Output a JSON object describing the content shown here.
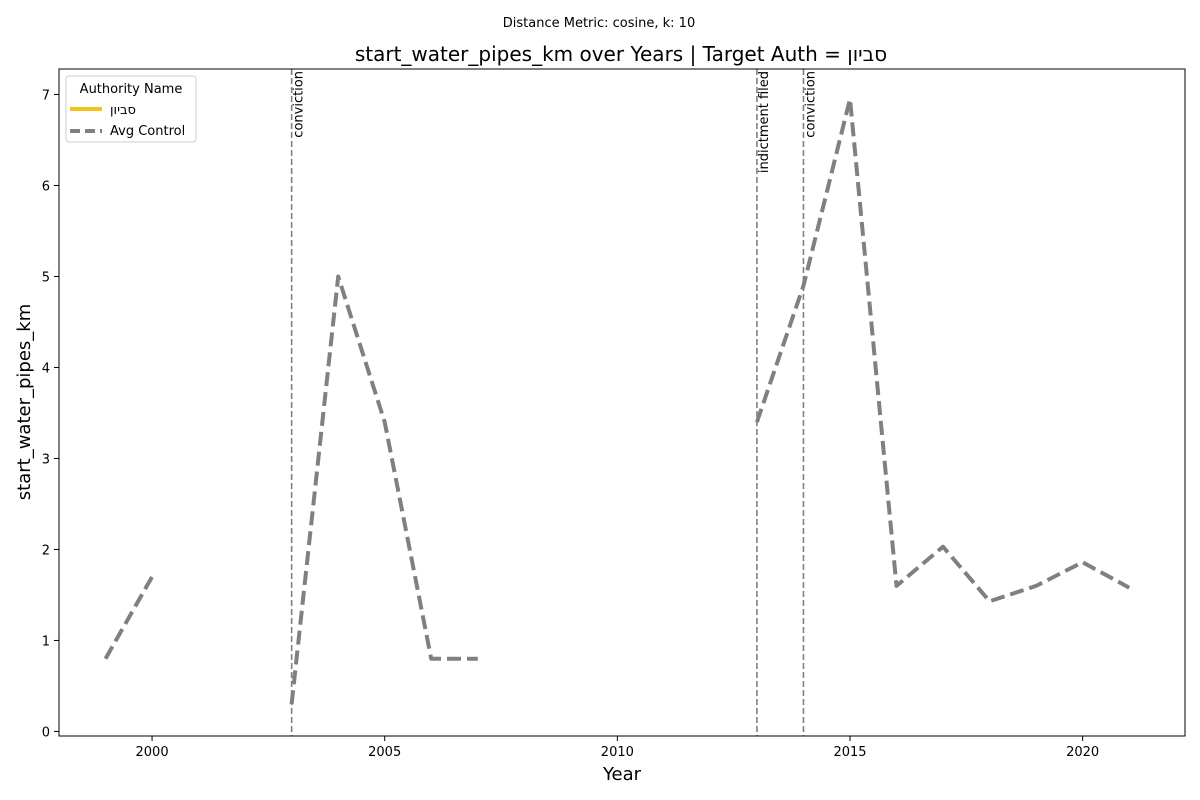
{
  "chart_data": {
    "type": "line",
    "suptitle": "Distance Metric: cosine, k: 10",
    "title": "start_water_pipes_km over Years | Target Auth = סביון",
    "xlabel": "Year",
    "ylabel": "start_water_pipes_km",
    "xlim": [
      1998,
      2022.2
    ],
    "ylim": [
      -0.05,
      7.28
    ],
    "xticks": [
      2000,
      2005,
      2010,
      2015,
      2020
    ],
    "yticks": [
      0,
      1,
      2,
      3,
      4,
      5,
      6,
      7
    ],
    "grid": false,
    "legend": {
      "title": "Authority Name",
      "placement": "top-left",
      "entries": [
        {
          "label": "סביון",
          "color": "#f0c419",
          "style": "solid"
        },
        {
          "label": "Avg Control",
          "color": "#808080",
          "style": "dashed"
        }
      ]
    },
    "series": [
      {
        "name": "סביון",
        "color": "#f0c419",
        "style": "solid",
        "points": []
      },
      {
        "name": "Avg Control",
        "color": "#808080",
        "style": "dashed",
        "points": [
          [
            1999,
            0.8
          ],
          [
            2000,
            1.7
          ],
          [
            2001,
            null
          ],
          [
            2002,
            null
          ],
          [
            2003,
            0.3
          ],
          [
            2004,
            5.0
          ],
          [
            2005,
            3.4
          ],
          [
            2006,
            0.8
          ],
          [
            2007,
            0.8
          ],
          [
            2008,
            null
          ],
          [
            2009,
            null
          ],
          [
            2010,
            null
          ],
          [
            2011,
            null
          ],
          [
            2012,
            null
          ],
          [
            2013,
            3.4
          ],
          [
            2014,
            4.9
          ],
          [
            2015,
            6.95
          ],
          [
            2016,
            1.6
          ],
          [
            2017,
            2.03
          ],
          [
            2018,
            1.43
          ],
          [
            2019,
            1.6
          ],
          [
            2020,
            1.86
          ],
          [
            2021,
            1.58
          ]
        ]
      }
    ],
    "events": [
      {
        "year": 2003,
        "label": "conviction"
      },
      {
        "year": 2013,
        "label": "indictment filed"
      },
      {
        "year": 2014,
        "label": "conviction"
      }
    ]
  }
}
